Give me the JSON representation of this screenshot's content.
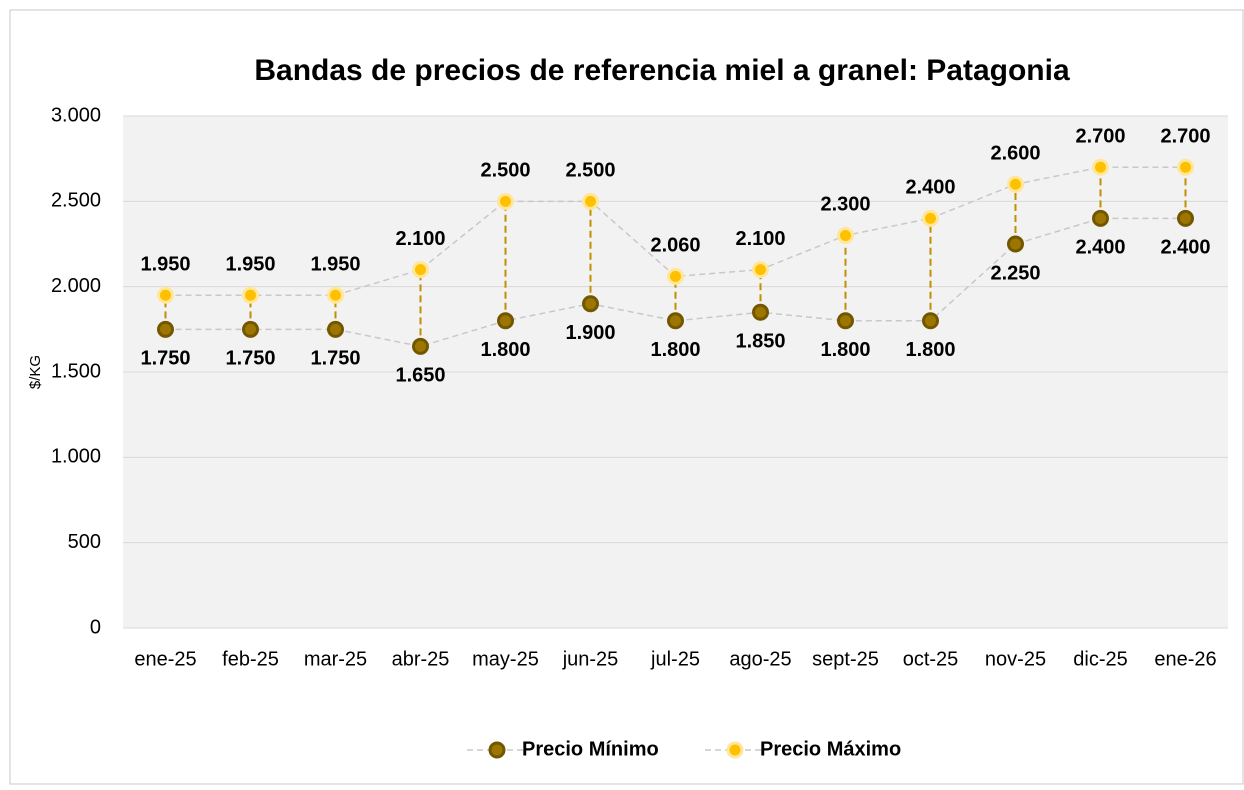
{
  "chart_data": {
    "type": "line",
    "title": "Bandas de precios de referencia miel a granel: Patagonia",
    "ylabel": "$/KG",
    "categories": [
      "ene-25",
      "feb-25",
      "mar-25",
      "abr-25",
      "may-25",
      "jun-25",
      "jul-25",
      "ago-25",
      "sept-25",
      "oct-25",
      "nov-25",
      "dic-25",
      "ene-26"
    ],
    "series": [
      {
        "name": "Precio Mínimo",
        "color": "#9c7600",
        "edge": "#735700",
        "values": [
          1750,
          1750,
          1750,
          1650,
          1800,
          1900,
          1800,
          1850,
          1800,
          1800,
          2250,
          2400,
          2400
        ],
        "value_labels": [
          "1.750",
          "1.750",
          "1.750",
          "1.650",
          "1.800",
          "1.900",
          "1.800",
          "1.850",
          "1.800",
          "1.800",
          "2.250",
          "2.400",
          "2.400"
        ]
      },
      {
        "name": "Precio Máximo",
        "color": "#ffc000",
        "edge": "#ffe699",
        "values": [
          1950,
          1950,
          1950,
          2100,
          2500,
          2500,
          2060,
          2100,
          2300,
          2400,
          2600,
          2700,
          2700
        ],
        "value_labels": [
          "1.950",
          "1.950",
          "1.950",
          "2.100",
          "2.500",
          "2.500",
          "2.060",
          "2.100",
          "2.300",
          "2.400",
          "2.600",
          "2.700",
          "2.700"
        ]
      }
    ],
    "ylim": [
      0,
      3000
    ],
    "yticks": [
      0,
      500,
      {
        "value": 1000,
        "label": "1.000"
      },
      {
        "value": 1500,
        "label": "1.500"
      },
      {
        "value": 2000,
        "label": "2.000"
      },
      {
        "value": 2500,
        "label": "2.500"
      },
      {
        "value": 3000,
        "label": "3.000"
      }
    ],
    "grid": true,
    "legend": "bottom",
    "drop_line_color": "#c09000",
    "line_color": "#c8c8c8"
  }
}
